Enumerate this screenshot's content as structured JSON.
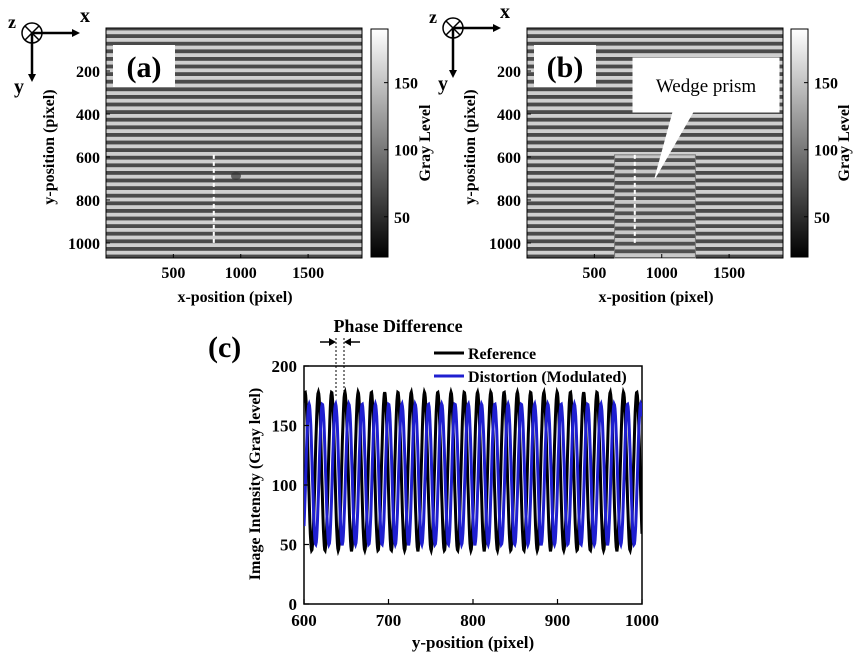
{
  "chart_data": [
    {
      "panel": "(a)",
      "type": "heatmap",
      "xlabel": "x-position (pixel)",
      "ylabel": "y-position (pixel)",
      "xticks": [
        500,
        1000,
        1500
      ],
      "yticks": [
        200,
        400,
        600,
        800,
        1000
      ],
      "xlim": [
        0,
        1900
      ],
      "ylim": [
        0,
        1070
      ],
      "colorbar": {
        "label": "Gray Level",
        "ticks": [
          50,
          100,
          150
        ],
        "range": [
          20,
          190
        ]
      },
      "axes_icon": {
        "z": "z",
        "x": "x",
        "y": "y"
      },
      "marker_line": {
        "x": 800,
        "y": [
          590,
          1010
        ]
      }
    },
    {
      "panel": "(b)",
      "type": "heatmap",
      "xlabel": "x-position (pixel)",
      "ylabel": "y-position (pixel)",
      "xticks": [
        500,
        1000,
        1500
      ],
      "yticks": [
        200,
        400,
        600,
        800,
        1000
      ],
      "xlim": [
        0,
        1900
      ],
      "ylim": [
        0,
        1070
      ],
      "colorbar": {
        "label": "Gray Level",
        "ticks": [
          50,
          100,
          150
        ],
        "range": [
          20,
          190
        ]
      },
      "axes_icon": {
        "z": "z",
        "x": "x",
        "y": "y"
      },
      "callout": "Wedge prism",
      "prism_region": {
        "x": [
          650,
          1250
        ],
        "y": [
          590,
          1070
        ]
      },
      "marker_line": {
        "x": 800,
        "y": [
          590,
          1010
        ]
      }
    },
    {
      "panel": "(c)",
      "type": "line",
      "xlabel": "y-position (pixel)",
      "ylabel": "Image Intensity (Gray level)",
      "xlim": [
        600,
        1000
      ],
      "ylim": [
        0,
        200
      ],
      "xticks": [
        600,
        700,
        800,
        900,
        1000
      ],
      "yticks": [
        0,
        50,
        100,
        150,
        200
      ],
      "annotation": "Phase Difference",
      "legend_position": "top-right",
      "series": [
        {
          "name": "Reference",
          "color": "#000000",
          "period": 15.7,
          "phase_x": 617,
          "max": 178,
          "min": 45
        },
        {
          "name": "Distortion (Modulated)",
          "color": "#1f1fd0",
          "period": 15.7,
          "phase_x": 606,
          "max": 168,
          "min": 50
        }
      ]
    }
  ]
}
